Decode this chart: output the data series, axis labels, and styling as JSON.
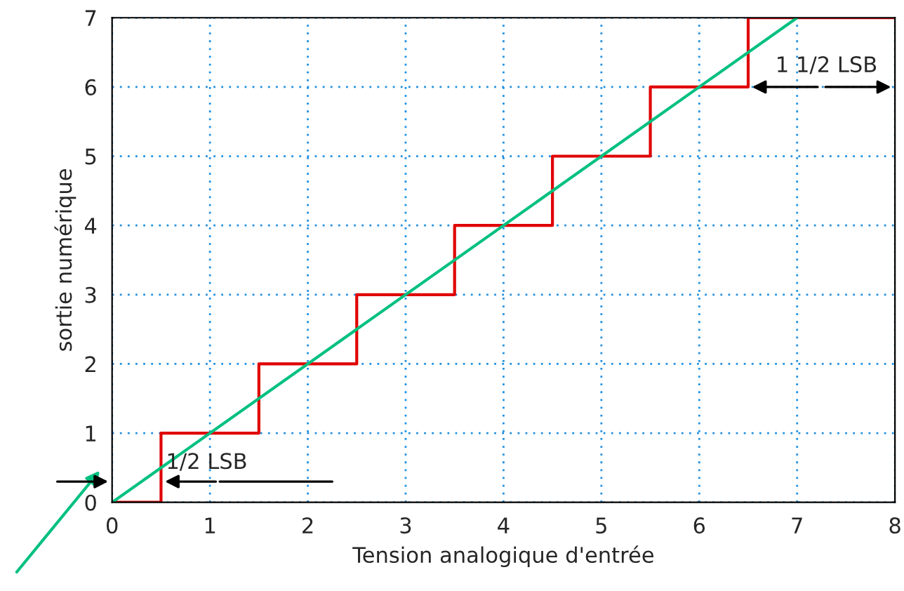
{
  "chart_data": {
    "type": "step",
    "xlabel": "Tension analogique d'entrée",
    "ylabel": "sortie numérique",
    "xlim": [
      0,
      8
    ],
    "ylim": [
      0,
      7
    ],
    "xticks": [
      0,
      1,
      2,
      3,
      4,
      5,
      6,
      7,
      8
    ],
    "yticks": [
      0,
      1,
      2,
      3,
      4,
      5,
      6,
      7
    ],
    "grid": true,
    "series": [
      {
        "color": "#e00000",
        "x": [
          0,
          0.5,
          1.5,
          2.5,
          3.5,
          4.5,
          5.5,
          6.5,
          8
        ],
        "values": [
          0,
          1,
          2,
          3,
          4,
          5,
          6,
          7,
          7
        ]
      },
      {
        "type": "line",
        "color": "#00c080",
        "x": [
          0,
          7
        ],
        "values": [
          0,
          7
        ]
      }
    ],
    "annotations": [
      "1/2 LSB",
      "1 1/2 LSB"
    ]
  }
}
